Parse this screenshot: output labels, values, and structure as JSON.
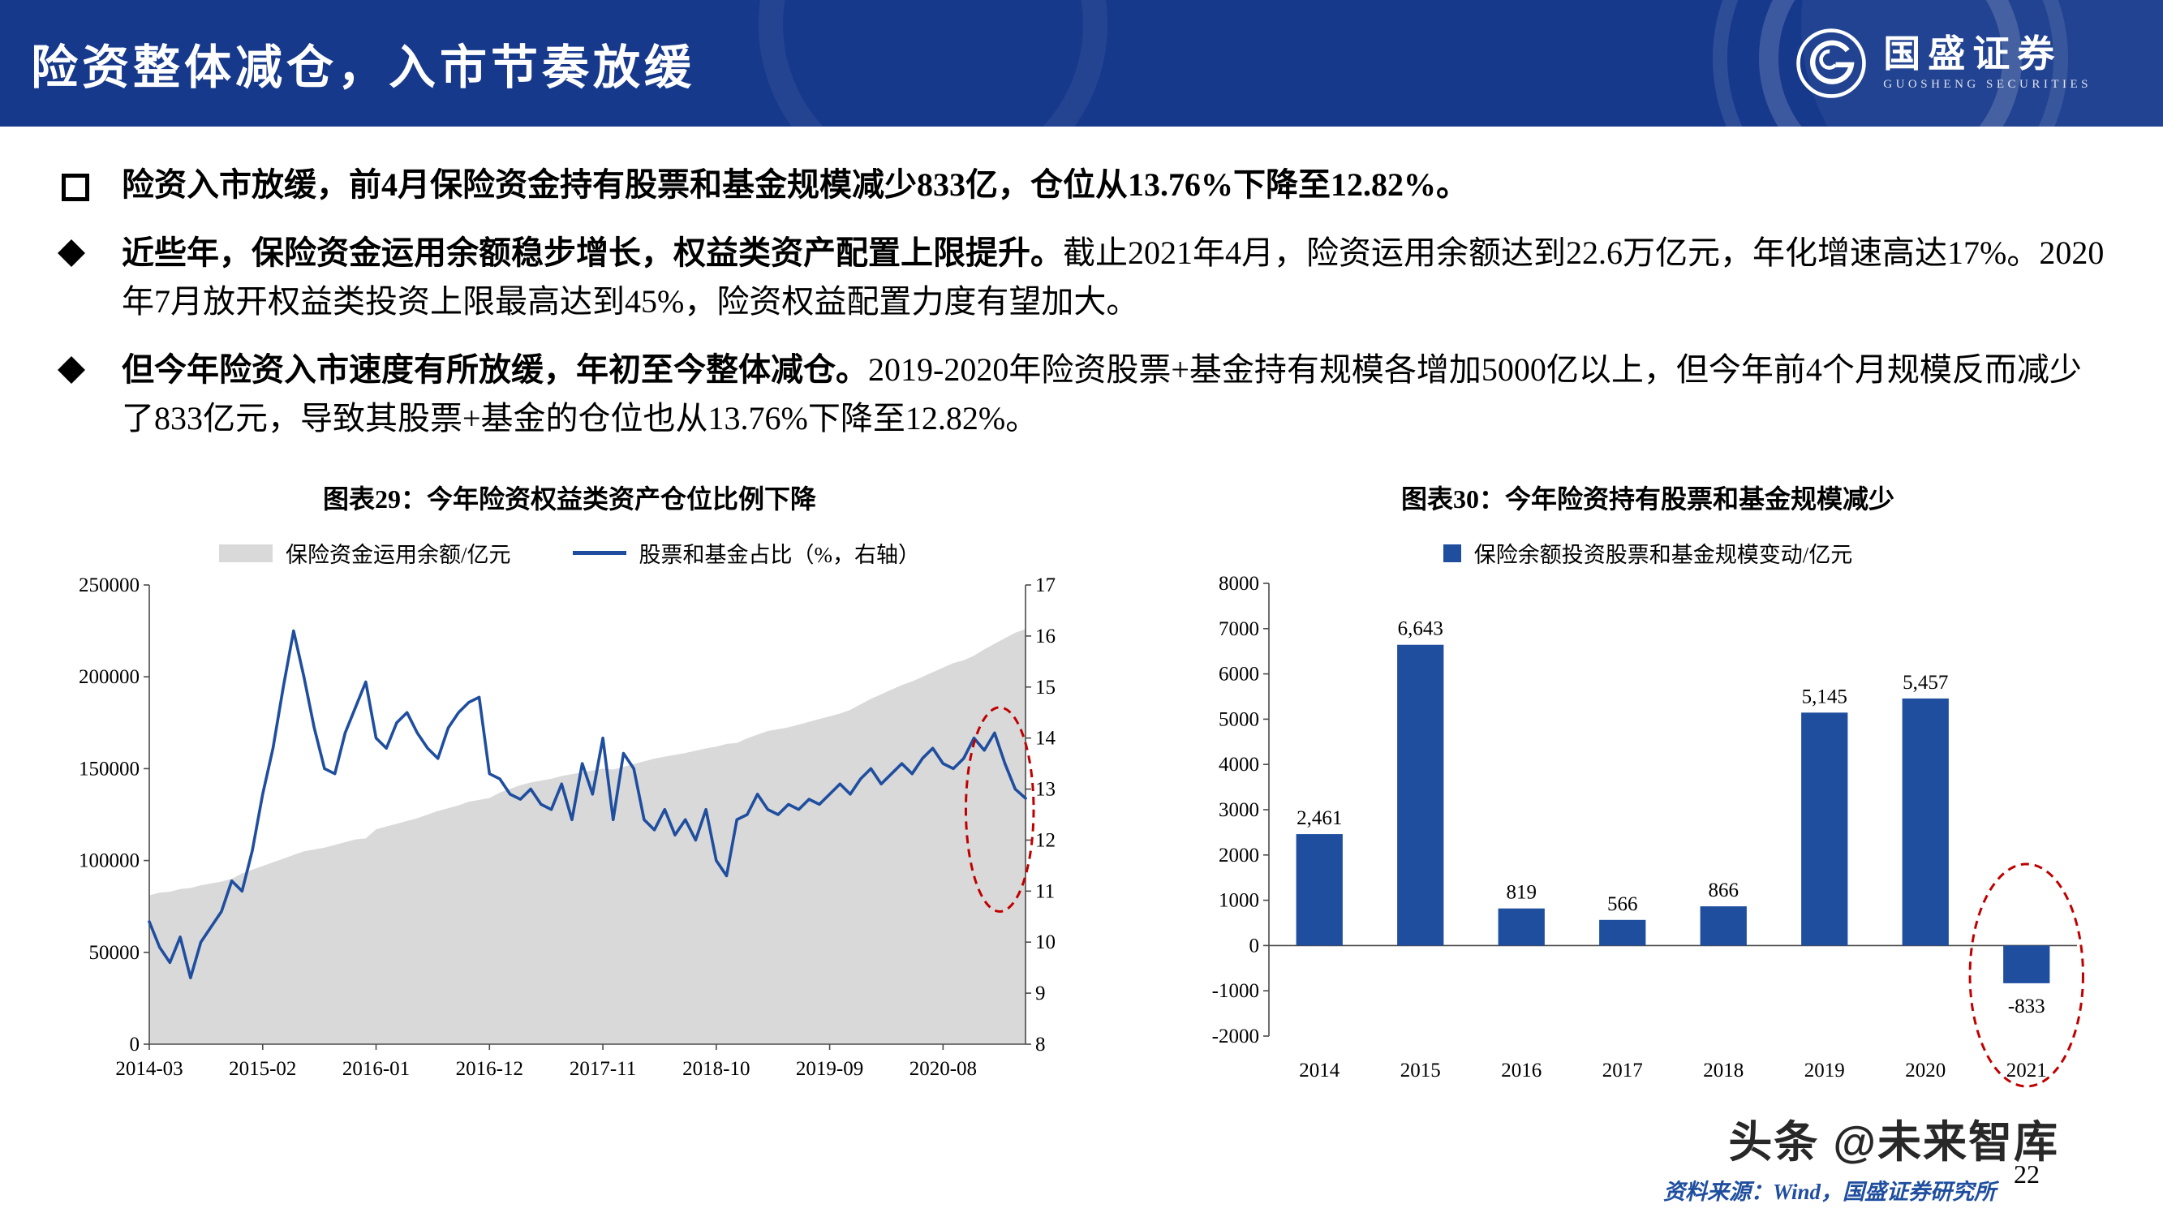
{
  "header": {
    "title": "险资整体减仓，入市节奏放缓",
    "logo_text": "国盛证券",
    "logo_subtext": "GUOSHENG SECURITIES",
    "header_color": "#17398c"
  },
  "bullets": [
    {
      "marker": "square",
      "bold": "险资入市放缓，前4月保险资金持有股票和基金规模减少833亿，仓位从13.76%下降至12.82%。",
      "rest": ""
    },
    {
      "marker": "diamond",
      "bold": "近些年，保险资金运用余额稳步增长，权益类资产配置上限提升。",
      "rest": "截止2021年4月，险资运用余额达到22.6万亿元，年化增速高达17%。2020年7月放开权益类投资上限最高达到45%，险资权益配置力度有望加大。"
    },
    {
      "marker": "diamond",
      "bold": "但今年险资入市速度有所放缓，年初至今整体减仓。",
      "rest": "2019-2020年险资股票+基金持有规模各增加5000亿以上，但今年前4个月规模反而减少了833亿元，导致其股票+基金的仓位也从13.76%下降至12.82%。"
    }
  ],
  "chart_data": [
    {
      "id": "chart29",
      "type": "area",
      "subtype": "combo-area-line",
      "title": "图表29：今年险资权益类资产仓位比例下降",
      "legend": [
        {
          "label": "保险资金运用余额/亿元"
        },
        {
          "label": "股票和基金占比（%，右轴）"
        }
      ],
      "area_color": "#d9d9d9",
      "line_color": "#1f4e9f",
      "left_axis": {
        "min": 0,
        "max": 250000,
        "step": 50000
      },
      "right_axis": {
        "min": 8,
        "max": 17,
        "step": 1
      },
      "x_ticks": [
        "2014-03",
        "2015-02",
        "2016-01",
        "2016-12",
        "2017-11",
        "2018-10",
        "2019-09",
        "2020-08"
      ],
      "x_tick_indices": [
        0,
        11,
        22,
        33,
        44,
        55,
        66,
        77
      ],
      "area_series": {
        "name": "保险资金运用余额/亿元",
        "values": [
          81000,
          82500,
          83000,
          84500,
          85000,
          86500,
          87500,
          88500,
          90000,
          93000,
          95000,
          97000,
          99000,
          101000,
          103000,
          105000,
          106000,
          107000,
          108500,
          110000,
          111500,
          112000,
          117000,
          118500,
          120000,
          121500,
          123000,
          125000,
          127000,
          128500,
          130000,
          132000,
          133000,
          134000,
          137000,
          139000,
          141000,
          142500,
          143500,
          144500,
          146000,
          147000,
          148000,
          149000,
          150000,
          149500,
          151000,
          152500,
          154000,
          155500,
          156500,
          157500,
          158500,
          159800,
          161000,
          162000,
          163500,
          164000,
          166500,
          168500,
          170500,
          171500,
          172500,
          174000,
          175500,
          177000,
          178500,
          180000,
          182000,
          185000,
          188000,
          190500,
          193000,
          195500,
          197500,
          200000,
          202500,
          205000,
          207500,
          209000,
          211500,
          215000,
          218000,
          221000,
          224000,
          226000
        ]
      },
      "line_series": {
        "name": "股票和基金占比（%，右轴）",
        "values": [
          10.4,
          9.9,
          9.6,
          10.1,
          9.3,
          10.0,
          10.3,
          10.6,
          11.2,
          11.0,
          11.8,
          12.9,
          13.8,
          15.0,
          16.1,
          15.2,
          14.2,
          13.4,
          13.3,
          14.1,
          14.6,
          15.1,
          14.0,
          13.8,
          14.3,
          14.5,
          14.1,
          13.8,
          13.6,
          14.2,
          14.5,
          14.7,
          14.8,
          13.3,
          13.2,
          12.9,
          12.8,
          13.0,
          12.7,
          12.6,
          13.1,
          12.4,
          13.5,
          12.9,
          14.0,
          12.4,
          13.7,
          13.4,
          12.4,
          12.2,
          12.6,
          12.1,
          12.4,
          12.0,
          12.6,
          11.6,
          11.3,
          12.4,
          12.5,
          12.9,
          12.6,
          12.5,
          12.7,
          12.6,
          12.8,
          12.7,
          12.9,
          13.1,
          12.9,
          13.2,
          13.4,
          13.1,
          13.3,
          13.5,
          13.3,
          13.6,
          13.8,
          13.5,
          13.4,
          13.6,
          14.0,
          13.76,
          14.1,
          13.5,
          13.0,
          12.82
        ]
      },
      "annotation": {
        "shape": "dashed-ellipse",
        "color": "#c00000",
        "x_from": 80,
        "x_to": 85,
        "y_top": 14.6,
        "y_bottom": 10.6
      }
    },
    {
      "id": "chart30",
      "type": "bar",
      "title": "图表30：今年险资持有股票和基金规模减少",
      "legend": [
        {
          "label": "保险余额投资股票和基金规模变动/亿元"
        }
      ],
      "bar_color": "#1f4e9f",
      "categories": [
        "2014",
        "2015",
        "2016",
        "2017",
        "2018",
        "2019",
        "2020",
        "2021"
      ],
      "values": [
        2461,
        6643,
        819,
        566,
        866,
        5145,
        5457,
        -833
      ],
      "labels": [
        "2,461",
        "6,643",
        "819",
        "566",
        "866",
        "5,145",
        "5,457",
        "-833"
      ],
      "y_axis": {
        "min": -2000,
        "max": 8000,
        "step": 1000
      },
      "annotation": {
        "shape": "dashed-ellipse",
        "color": "#c00000",
        "category_index": 7,
        "y_top": 1800
      }
    }
  ],
  "footer": {
    "source": "资料来源：Wind，国盛证券研究所",
    "page_number": "22",
    "watermark": "头条 @未来智库"
  }
}
